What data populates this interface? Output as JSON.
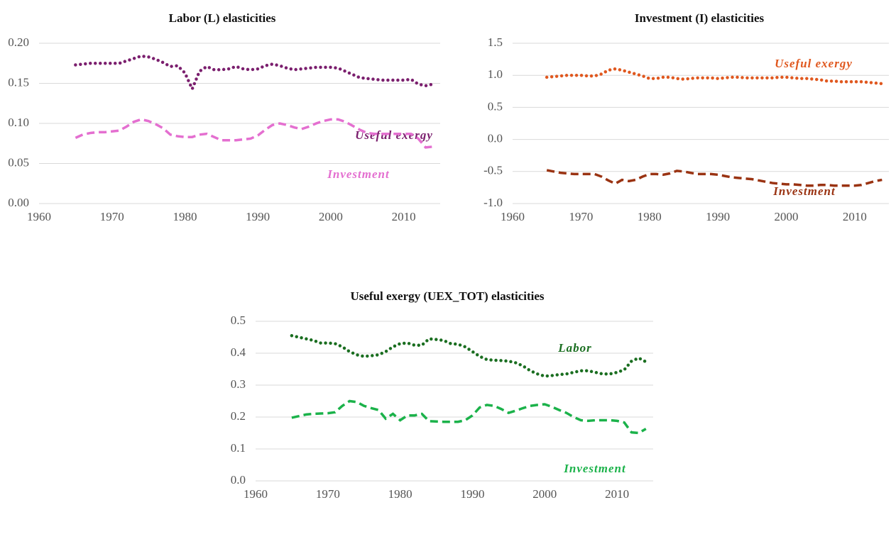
{
  "chart_data": [
    {
      "type": "line",
      "title": "Labor (L) elasticities",
      "x": [
        1965,
        1966,
        1967,
        1968,
        1969,
        1970,
        1971,
        1972,
        1973,
        1974,
        1975,
        1976,
        1977,
        1978,
        1979,
        1980,
        1981,
        1982,
        1983,
        1984,
        1985,
        1986,
        1987,
        1988,
        1989,
        1990,
        1991,
        1992,
        1993,
        1994,
        1995,
        1996,
        1997,
        1998,
        1999,
        2000,
        2001,
        2002,
        2003,
        2004,
        2005,
        2006,
        2007,
        2008,
        2009,
        2010,
        2011,
        2012,
        2013,
        2014
      ],
      "series": [
        {
          "name": "Useful exergy",
          "color": "#7b1f6e",
          "style": "dotted",
          "values": [
            0.173,
            0.174,
            0.175,
            0.175,
            0.175,
            0.175,
            0.175,
            0.178,
            0.181,
            0.184,
            0.183,
            0.18,
            0.176,
            0.171,
            0.172,
            0.163,
            0.143,
            0.165,
            0.171,
            0.167,
            0.167,
            0.168,
            0.171,
            0.168,
            0.167,
            0.168,
            0.172,
            0.174,
            0.172,
            0.169,
            0.167,
            0.168,
            0.169,
            0.17,
            0.17,
            0.17,
            0.169,
            0.165,
            0.161,
            0.157,
            0.156,
            0.155,
            0.154,
            0.154,
            0.154,
            0.154,
            0.155,
            0.149,
            0.147,
            0.149
          ]
        },
        {
          "name": "Investment",
          "color": "#e46fd0",
          "style": "dashed",
          "values": [
            0.082,
            0.086,
            0.088,
            0.089,
            0.089,
            0.09,
            0.091,
            0.096,
            0.102,
            0.105,
            0.103,
            0.099,
            0.094,
            0.086,
            0.084,
            0.083,
            0.083,
            0.086,
            0.087,
            0.083,
            0.079,
            0.079,
            0.079,
            0.08,
            0.081,
            0.085,
            0.092,
            0.098,
            0.1,
            0.098,
            0.095,
            0.093,
            0.096,
            0.1,
            0.103,
            0.105,
            0.105,
            0.102,
            0.097,
            0.092,
            0.088,
            0.087,
            0.087,
            0.087,
            0.087,
            0.087,
            0.087,
            0.081,
            0.07,
            0.071
          ]
        }
      ],
      "xlim": [
        1960,
        2015
      ],
      "xticks": [
        1960,
        1970,
        1980,
        1990,
        2000,
        2010
      ],
      "ylim": [
        0,
        0.2
      ],
      "yticks": [
        {
          "value": 0,
          "label": "0.00"
        },
        0.05,
        {
          "value": 0.1,
          "label": "0.10"
        },
        0.15,
        {
          "value": 0.2,
          "label": "0.20"
        }
      ],
      "grid": true
    },
    {
      "type": "line",
      "title": "Investment (I) elasticities",
      "x": [
        1965,
        1966,
        1967,
        1968,
        1969,
        1970,
        1971,
        1972,
        1973,
        1974,
        1975,
        1976,
        1977,
        1978,
        1979,
        1980,
        1981,
        1982,
        1983,
        1984,
        1985,
        1986,
        1987,
        1988,
        1989,
        1990,
        1991,
        1992,
        1993,
        1994,
        1995,
        1996,
        1997,
        1998,
        1999,
        2000,
        2001,
        2002,
        2003,
        2004,
        2005,
        2006,
        2007,
        2008,
        2009,
        2010,
        2011,
        2012,
        2013,
        2014
      ],
      "series": [
        {
          "name": "Useful exergy",
          "color": "#e0581f",
          "style": "dotted",
          "values": [
            0.97,
            0.98,
            0.99,
            1.0,
            1.0,
            1.0,
            0.99,
            0.99,
            1.02,
            1.08,
            1.1,
            1.08,
            1.05,
            1.02,
            0.99,
            0.95,
            0.95,
            0.97,
            0.97,
            0.95,
            0.94,
            0.95,
            0.96,
            0.96,
            0.96,
            0.95,
            0.96,
            0.97,
            0.97,
            0.96,
            0.96,
            0.96,
            0.96,
            0.96,
            0.97,
            0.97,
            0.96,
            0.95,
            0.95,
            0.94,
            0.93,
            0.91,
            0.91,
            0.9,
            0.9,
            0.9,
            0.9,
            0.89,
            0.88,
            0.87
          ]
        },
        {
          "name": "Investment",
          "color": "#9a3312",
          "style": "dashed",
          "values": [
            -0.48,
            -0.5,
            -0.52,
            -0.53,
            -0.54,
            -0.54,
            -0.54,
            -0.54,
            -0.58,
            -0.64,
            -0.69,
            -0.63,
            -0.65,
            -0.63,
            -0.58,
            -0.54,
            -0.54,
            -0.55,
            -0.53,
            -0.49,
            -0.5,
            -0.52,
            -0.54,
            -0.54,
            -0.54,
            -0.55,
            -0.57,
            -0.59,
            -0.6,
            -0.61,
            -0.62,
            -0.64,
            -0.66,
            -0.68,
            -0.69,
            -0.7,
            -0.7,
            -0.71,
            -0.72,
            -0.72,
            -0.71,
            -0.71,
            -0.72,
            -0.72,
            -0.72,
            -0.72,
            -0.71,
            -0.68,
            -0.65,
            -0.63
          ]
        }
      ],
      "xlim": [
        1960,
        2015
      ],
      "xticks": [
        1960,
        1970,
        1980,
        1990,
        2000,
        2010
      ],
      "ylim": [
        -1,
        1.5
      ],
      "yticks": [
        {
          "value": -1,
          "label": "-1.0"
        },
        -0.5,
        {
          "value": 0,
          "label": "0.0"
        },
        0.5,
        {
          "value": 1,
          "label": "1.0"
        },
        1.5
      ],
      "grid": true
    },
    {
      "type": "line",
      "title": "Useful exergy (UEX_TOT) elasticities",
      "x": [
        1965,
        1966,
        1967,
        1968,
        1969,
        1970,
        1971,
        1972,
        1973,
        1974,
        1975,
        1976,
        1977,
        1978,
        1979,
        1980,
        1981,
        1982,
        1983,
        1984,
        1985,
        1986,
        1987,
        1988,
        1989,
        1990,
        1991,
        1992,
        1993,
        1994,
        1995,
        1996,
        1997,
        1998,
        1999,
        2000,
        2001,
        2002,
        2003,
        2004,
        2005,
        2006,
        2007,
        2008,
        2009,
        2010,
        2011,
        2012,
        2013,
        2014
      ],
      "series": [
        {
          "name": "Labor",
          "color": "#1a6e20",
          "style": "dotted",
          "values": [
            0.455,
            0.45,
            0.445,
            0.44,
            0.432,
            0.432,
            0.43,
            0.42,
            0.405,
            0.395,
            0.39,
            0.392,
            0.395,
            0.405,
            0.42,
            0.43,
            0.432,
            0.425,
            0.425,
            0.445,
            0.443,
            0.44,
            0.43,
            0.428,
            0.42,
            0.405,
            0.39,
            0.38,
            0.378,
            0.377,
            0.375,
            0.37,
            0.36,
            0.345,
            0.335,
            0.328,
            0.33,
            0.333,
            0.335,
            0.34,
            0.345,
            0.345,
            0.34,
            0.335,
            0.335,
            0.34,
            0.348,
            0.375,
            0.385,
            0.373
          ]
        },
        {
          "name": "Investment",
          "color": "#1bb24a",
          "style": "dashed",
          "values": [
            0.198,
            0.203,
            0.208,
            0.21,
            0.211,
            0.212,
            0.215,
            0.235,
            0.25,
            0.247,
            0.235,
            0.228,
            0.222,
            0.195,
            0.21,
            0.19,
            0.205,
            0.205,
            0.21,
            0.187,
            0.186,
            0.185,
            0.185,
            0.185,
            0.19,
            0.205,
            0.23,
            0.238,
            0.235,
            0.225,
            0.213,
            0.22,
            0.228,
            0.235,
            0.238,
            0.24,
            0.232,
            0.222,
            0.213,
            0.2,
            0.19,
            0.188,
            0.19,
            0.19,
            0.19,
            0.188,
            0.183,
            0.152,
            0.15,
            0.163
          ]
        }
      ],
      "xlim": [
        1960,
        2015
      ],
      "xticks": [
        1960,
        1970,
        1980,
        1990,
        2000,
        2010
      ],
      "ylim": [
        0,
        0.5
      ],
      "yticks": [
        {
          "value": 0,
          "label": "0.0"
        },
        0.1,
        0.2,
        0.3,
        0.4,
        0.5
      ],
      "grid": true
    }
  ]
}
